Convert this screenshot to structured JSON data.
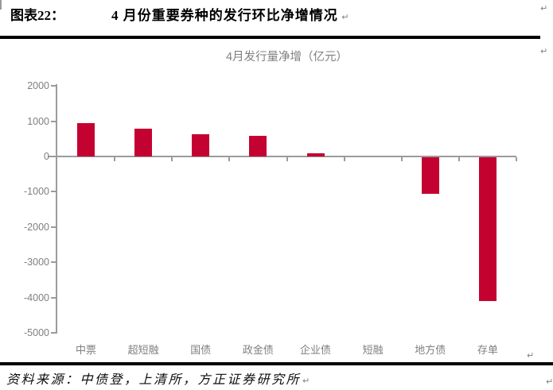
{
  "figure": {
    "label": "图表22：",
    "title": "4 月份重要券种的发行环比净增情况"
  },
  "marks": {
    "return": "↵"
  },
  "source": {
    "text": "资料来源：中债登，上清所，方正证券研究所"
  },
  "chart_data": {
    "type": "bar",
    "title": "4月发行量净增（亿元）",
    "categories": [
      "中票",
      "超短融",
      "国债",
      "政金债",
      "企业债",
      "短融",
      "地方债",
      "存单"
    ],
    "values": [
      950,
      780,
      630,
      580,
      90,
      0,
      -1030,
      -4070
    ],
    "unit": "亿元",
    "xlabel": "",
    "ylabel": "",
    "ylim": [
      -5000,
      2000
    ],
    "yticks": [
      2000,
      1000,
      0,
      -1000,
      -2000,
      -3000,
      -4000,
      -5000
    ],
    "grid": false,
    "legend": "none",
    "bar_color": "#C40232",
    "axis_color": "#9B9B9B",
    "label_color": "#7F7F7F"
  }
}
